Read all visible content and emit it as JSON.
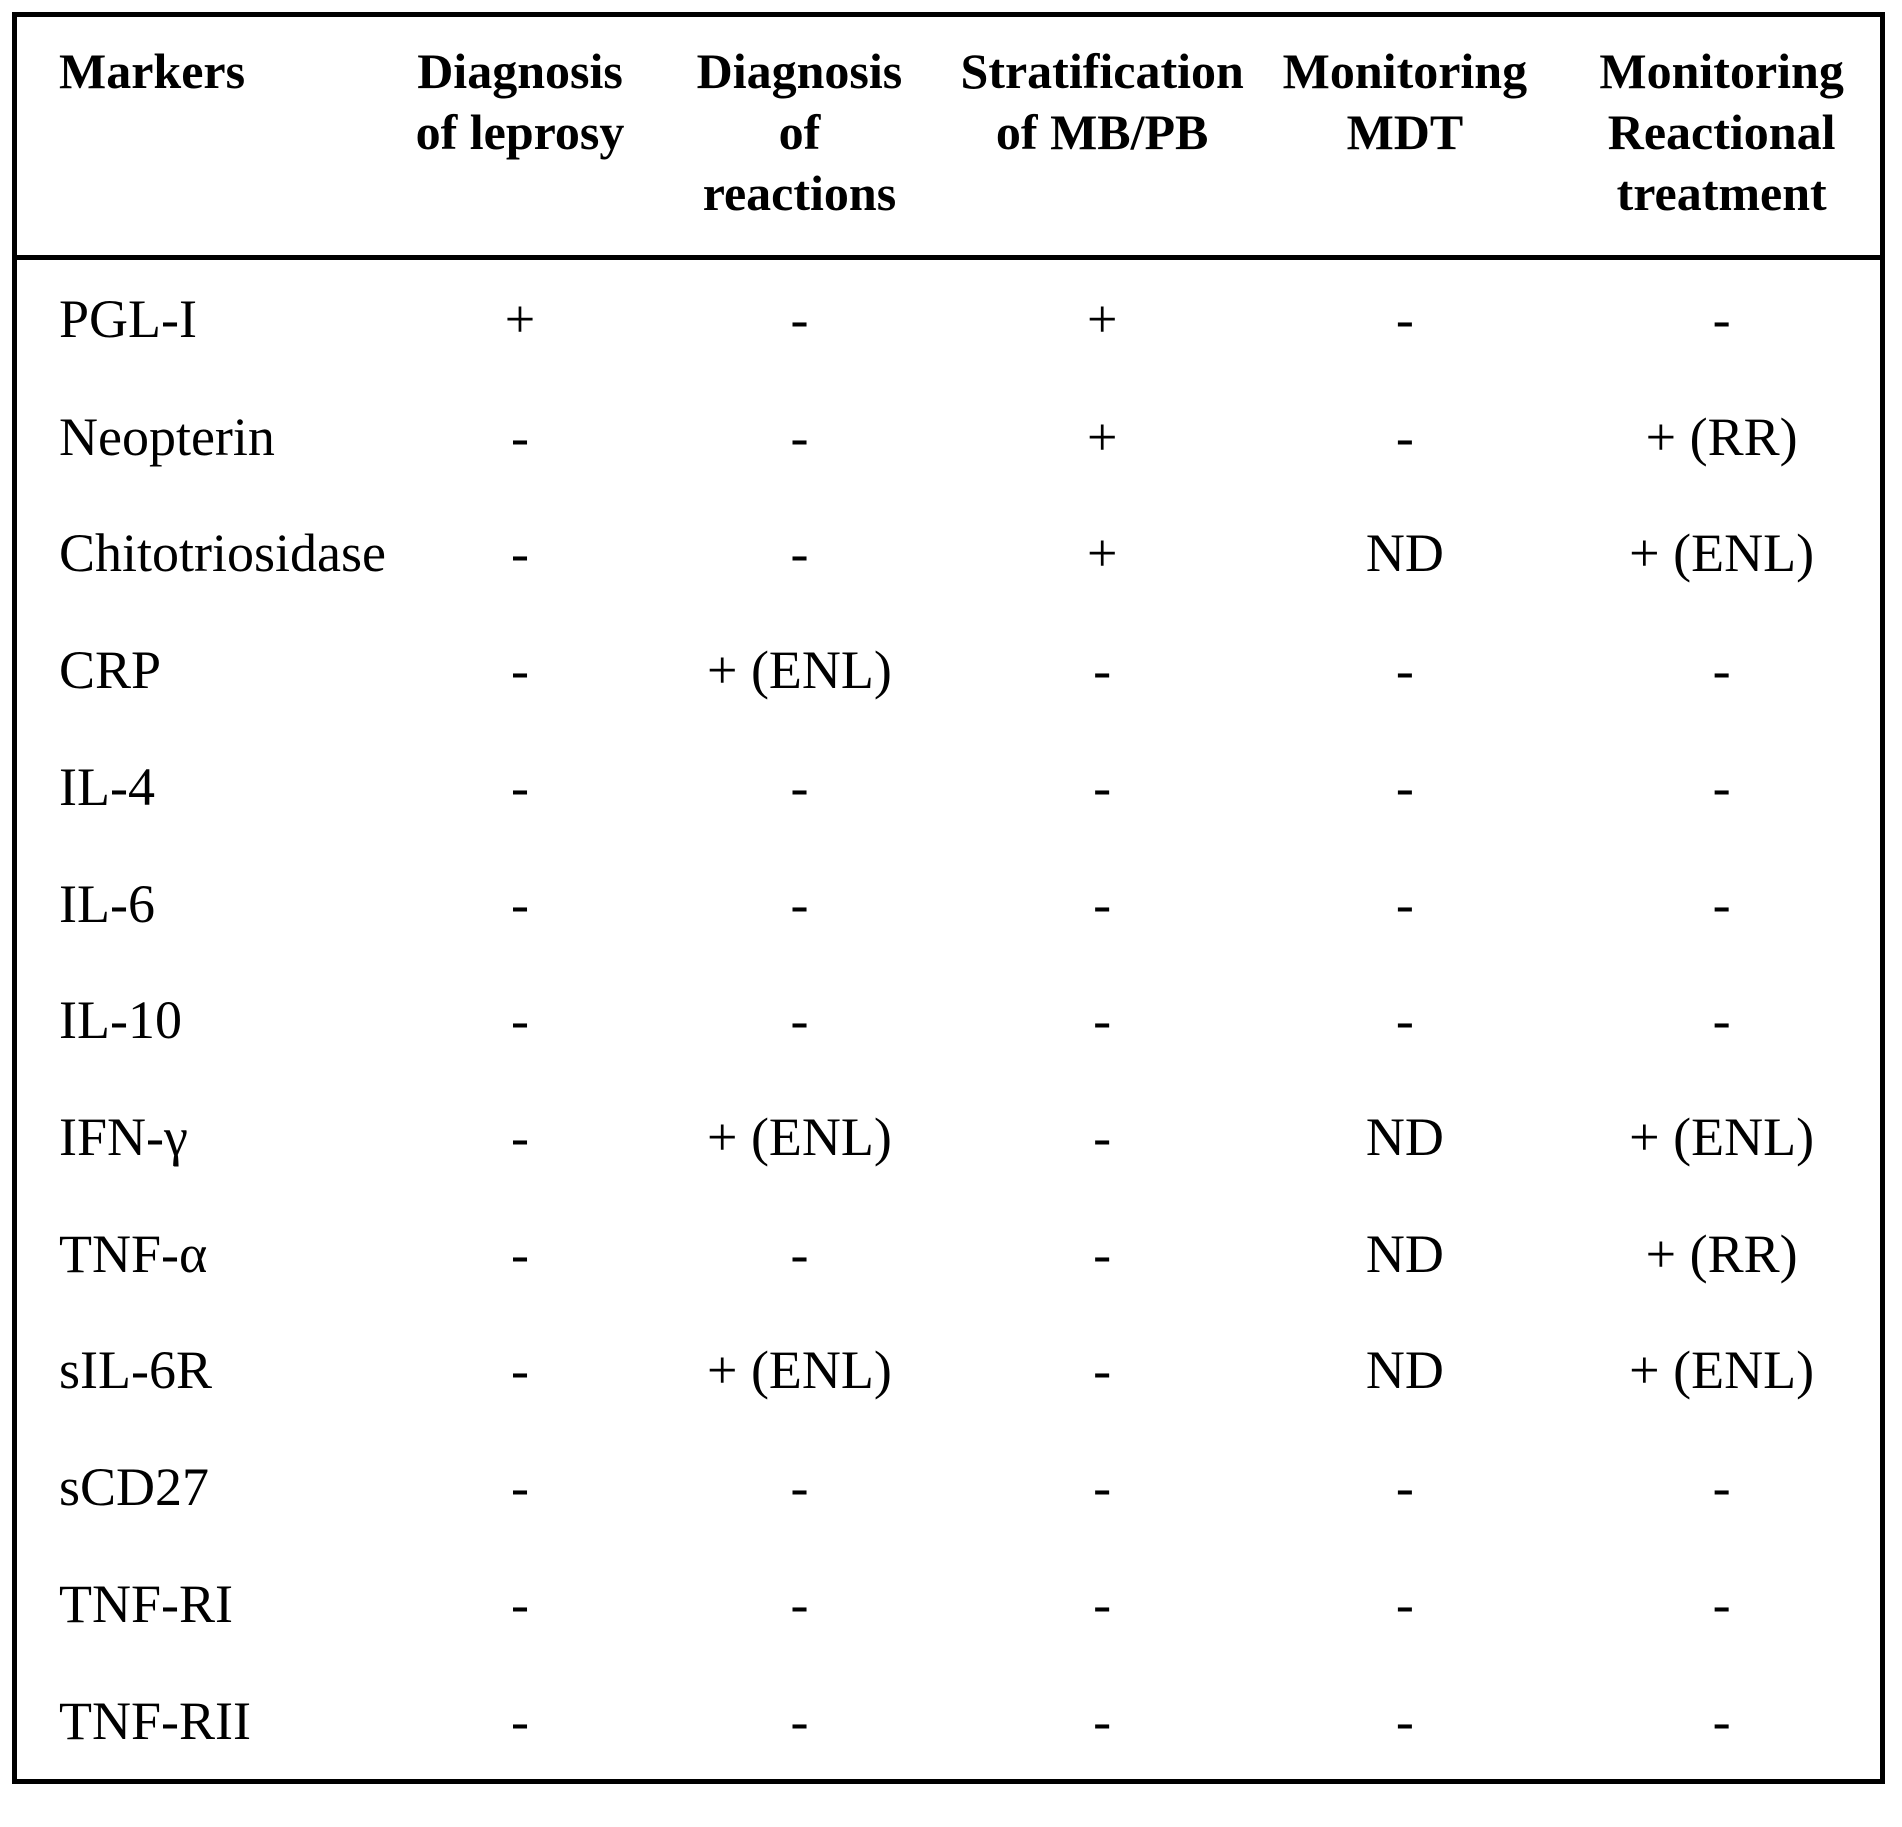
{
  "chart_data": {
    "type": "table",
    "columns": [
      "Markers",
      "Diagnosis\nof leprosy",
      "Diagnosis\nof\nreactions",
      "Stratification\nof MB/PB",
      "Monitoring\nMDT",
      "Monitoring\nReactional\ntreatment"
    ],
    "rows": [
      [
        "PGL-I",
        "+",
        "-",
        "+",
        "-",
        "-"
      ],
      [
        "Neopterin",
        "-",
        "-",
        "+",
        "-",
        "+ (RR)"
      ],
      [
        "Chitotriosidase",
        "-",
        "-",
        "+",
        "ND",
        "+ (ENL)"
      ],
      [
        "CRP",
        "-",
        "+ (ENL)",
        "-",
        "-",
        "-"
      ],
      [
        "IL-4",
        "-",
        "-",
        "-",
        "-",
        "-"
      ],
      [
        "IL-6",
        "-",
        "-",
        "-",
        "-",
        "-"
      ],
      [
        "IL-10",
        "-",
        "-",
        "-",
        "-",
        "-"
      ],
      [
        "IFN-γ",
        "-",
        "+ (ENL)",
        "-",
        "ND",
        "+ (ENL)"
      ],
      [
        "TNF-α",
        "-",
        "-",
        "-",
        "ND",
        "+ (RR)"
      ],
      [
        "sIL-6R",
        "-",
        "+ (ENL)",
        "-",
        "ND",
        "+ (ENL)"
      ],
      [
        "sCD27",
        "-",
        "-",
        "-",
        "-",
        "-"
      ],
      [
        "TNF-RI",
        "-",
        "-",
        "-",
        "-",
        "-"
      ],
      [
        "TNF-RII",
        "-",
        "-",
        "-",
        "-",
        "-"
      ]
    ],
    "legend_codes_visible": [
      "+",
      "-",
      "ND",
      "RR",
      "ENL"
    ],
    "grid": "outer-border-and-header-rule-only"
  },
  "colors": {
    "text": "#000000",
    "background": "#ffffff",
    "border": "#000000"
  }
}
